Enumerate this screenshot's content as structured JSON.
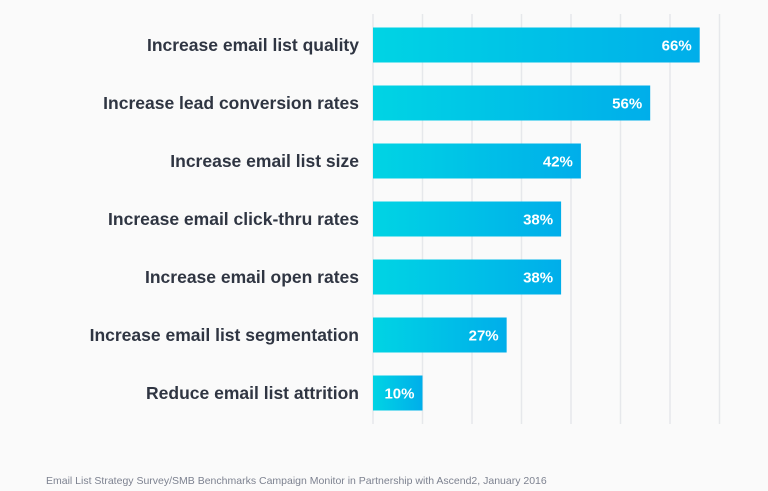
{
  "chart_data": {
    "type": "bar",
    "orientation": "horizontal",
    "categories": [
      "Increase email list quality",
      "Increase lead conversion rates",
      "Increase email list size",
      "Increase email click-thru rates",
      "Increase email open rates",
      "Increase email list segmentation",
      "Reduce email list attrition"
    ],
    "values": [
      66,
      56,
      42,
      38,
      38,
      27,
      10
    ],
    "value_labels": [
      "66%",
      "56%",
      "42%",
      "38%",
      "38%",
      "27%",
      "10%"
    ],
    "xlim": [
      0,
      70
    ],
    "grid_step": 10,
    "grid": true,
    "title": "",
    "xlabel": "",
    "ylabel": "",
    "colors": {
      "bar_start": "#00d4e4",
      "bar_end": "#00aeea",
      "grid": "#e6e8eb",
      "text": "#2f3542"
    }
  },
  "source": "Email List Strategy Survey/SMB Benchmarks Campaign Monitor in Partnership with Ascend2, January 2016"
}
